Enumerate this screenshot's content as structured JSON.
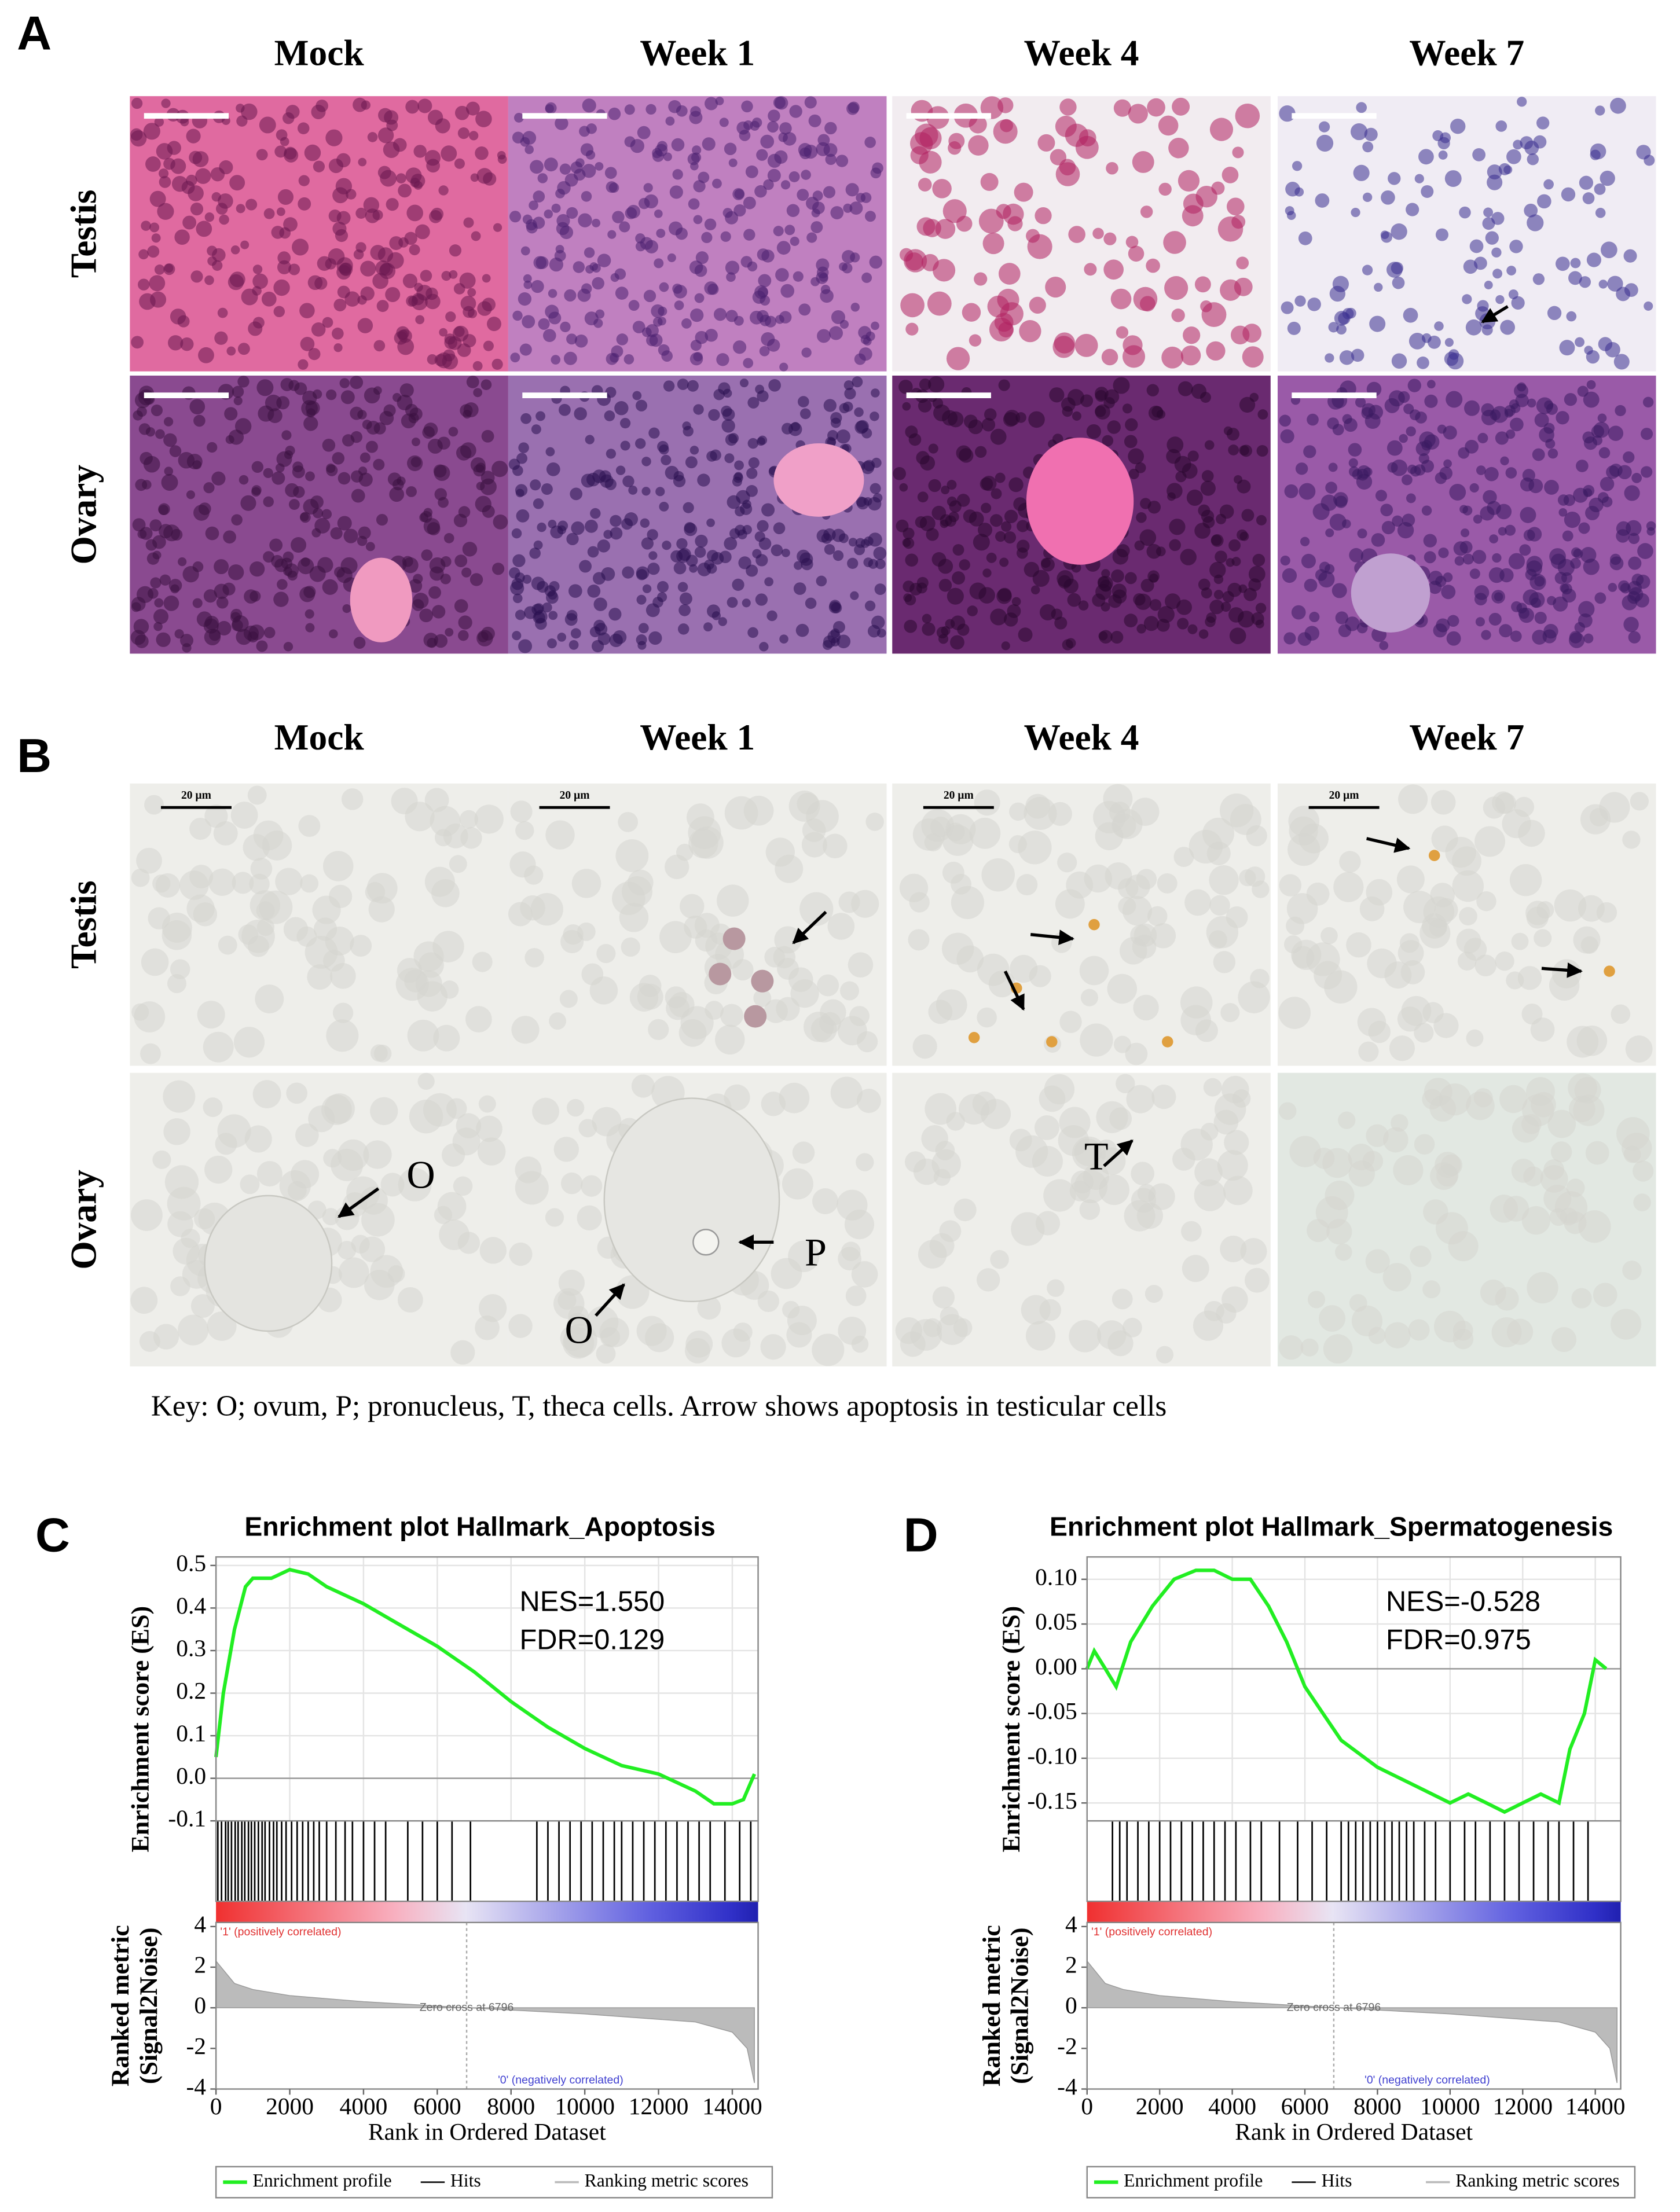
{
  "panels": [
    {
      "label": "A",
      "columns": [
        "Mock",
        "Week 1",
        "Week 4",
        "Week 7"
      ],
      "rows": [
        "Testis",
        "Ovary"
      ]
    },
    {
      "label": "B",
      "columns": [
        "Mock",
        "Week 1",
        "Week 4",
        "Week 7"
      ],
      "rows": [
        "Testis",
        "Ovary"
      ],
      "scale_label": "20 µm",
      "cell_labels": [
        "O",
        "O",
        "P",
        "T"
      ]
    }
  ],
  "key": "Key: O; ovum, P; pronucleus, T, theca cells. Arrow shows apoptosis in testicular cells",
  "chart_data": [
    {
      "type": "line",
      "panel": "C",
      "title": "Enrichment plot Hallmark_Apoptosis",
      "ylabel": "Enrichment score (ES)",
      "y2label": [
        "Ranked metric",
        "(Signal2Noise)"
      ],
      "xlabel": "Rank in Ordered Dataset",
      "annotations": [
        "NES=1.550",
        "FDR=0.129"
      ],
      "x": [
        0,
        200,
        500,
        800,
        1000,
        1500,
        2000,
        2500,
        3000,
        4000,
        5000,
        6000,
        7000,
        8000,
        9000,
        10000,
        11000,
        12000,
        13000,
        13500,
        14000,
        14300,
        14600
      ],
      "series": [
        {
          "name": "Enrichment profile",
          "color": "#22ee22",
          "values": [
            0.05,
            0.2,
            0.35,
            0.45,
            0.47,
            0.47,
            0.49,
            0.48,
            0.45,
            0.41,
            0.36,
            0.31,
            0.25,
            0.18,
            0.12,
            0.07,
            0.03,
            0.01,
            -0.03,
            -0.06,
            -0.06,
            -0.05,
            0.01
          ]
        }
      ],
      "hits": {
        "name": "Hits",
        "color": "#000000",
        "x": [
          50,
          150,
          260,
          330,
          420,
          520,
          600,
          700,
          780,
          880,
          960,
          1050,
          1150,
          1250,
          1330,
          1450,
          1560,
          1650,
          1780,
          1900,
          2050,
          2200,
          2350,
          2500,
          2650,
          2800,
          3000,
          3250,
          3500,
          3700,
          4000,
          4300,
          4600,
          5200,
          5600,
          6000,
          6400,
          6900,
          8700,
          9000,
          9300,
          9600,
          9900,
          10200,
          10500,
          10800,
          11000,
          11300,
          11600,
          11900,
          12200,
          12500,
          12800,
          13100,
          13400,
          13800,
          14200,
          14500
        ]
      },
      "metric": {
        "name": "Ranking metric scores",
        "color": "#bbbbbb",
        "x": [
          0,
          500,
          1000,
          2000,
          4000,
          6796,
          10000,
          13000,
          14000,
          14400,
          14600
        ],
        "values": [
          2.3,
          1.2,
          0.9,
          0.6,
          0.3,
          0,
          -0.3,
          -0.7,
          -1.2,
          -2,
          -3.7
        ]
      },
      "metric_labels": [
        "'1' (positively correlated)",
        "'0' (negatively correlated)"
      ],
      "zero_cross": 6796,
      "zero_cross_label": "Zero cross at 6796",
      "xlim": [
        0,
        14700
      ],
      "xticks": [
        0,
        2000,
        4000,
        6000,
        8000,
        10000,
        12000,
        14000
      ],
      "ylim": [
        -0.1,
        0.52
      ],
      "yticks": [
        0.5,
        0.4,
        0.3,
        0.2,
        0.1,
        {
          "value": 0,
          "label": "0.0"
        },
        -0.1
      ],
      "y2lim": [
        -4,
        4.2
      ],
      "y2ticks": [
        4,
        2,
        0,
        -2,
        -4
      ],
      "grid": true
    },
    {
      "type": "line",
      "panel": "D",
      "title": "Enrichment plot Hallmark_Spermatogenesis",
      "ylabel": "Enrichment score (ES)",
      "y2label": [
        "Ranked metric",
        "(Signal2Noise)"
      ],
      "xlabel": "Rank in Ordered Dataset",
      "annotations": [
        "NES=-0.528",
        "FDR=0.975"
      ],
      "x": [
        0,
        200,
        500,
        800,
        1200,
        1800,
        2400,
        3000,
        3500,
        4000,
        4500,
        5000,
        5500,
        6000,
        6500,
        7000,
        8000,
        9000,
        10000,
        10500,
        11000,
        11500,
        12000,
        12500,
        13000,
        13300,
        13700,
        14000,
        14300
      ],
      "series": [
        {
          "name": "Enrichment profile",
          "color": "#22ee22",
          "values": [
            0,
            0.02,
            0,
            -0.02,
            0.03,
            0.07,
            0.1,
            0.11,
            0.11,
            0.1,
            0.1,
            0.07,
            0.03,
            -0.02,
            -0.05,
            -0.08,
            -0.11,
            -0.13,
            -0.15,
            -0.14,
            -0.15,
            -0.16,
            -0.15,
            -0.14,
            -0.15,
            -0.09,
            -0.05,
            0.01,
            0
          ]
        }
      ],
      "hits": {
        "name": "Hits",
        "color": "#000000",
        "x": [
          700,
          900,
          1100,
          1400,
          1700,
          2000,
          2300,
          2600,
          2900,
          3200,
          3500,
          3800,
          4100,
          4500,
          4800,
          5300,
          5800,
          6200,
          6600,
          7000,
          7200,
          7400,
          7600,
          7800,
          8000,
          8200,
          8400,
          8600,
          8800,
          9000,
          9300,
          9600,
          10000,
          10400,
          10700,
          11100,
          11500,
          11900,
          12300,
          12700,
          13000,
          13400,
          13800
        ]
      },
      "metric": {
        "name": "Ranking metric scores",
        "color": "#bbbbbb",
        "x": [
          0,
          500,
          1000,
          2000,
          4000,
          6796,
          10000,
          13000,
          14000,
          14400,
          14600
        ],
        "values": [
          2.3,
          1.2,
          0.9,
          0.6,
          0.3,
          0,
          -0.3,
          -0.7,
          -1.2,
          -2,
          -3.7
        ]
      },
      "metric_labels": [
        "'1' (positively correlated)",
        "'0' (negatively correlated)"
      ],
      "zero_cross": 6796,
      "zero_cross_label": "Zero cross at 6796",
      "xlim": [
        0,
        14700
      ],
      "xticks": [
        0,
        2000,
        4000,
        6000,
        8000,
        10000,
        12000,
        14000
      ],
      "ylim": [
        -0.17,
        0.125
      ],
      "yticks": [
        {
          "value": 0.1,
          "label": "0.10"
        },
        0.05,
        {
          "value": 0,
          "label": "0.00"
        },
        -0.05,
        {
          "value": -0.1,
          "label": "-0.10"
        },
        -0.15
      ],
      "y2lim": [
        -4,
        4.2
      ],
      "y2ticks": [
        4,
        2,
        0,
        -2,
        -4
      ],
      "grid": true
    }
  ]
}
